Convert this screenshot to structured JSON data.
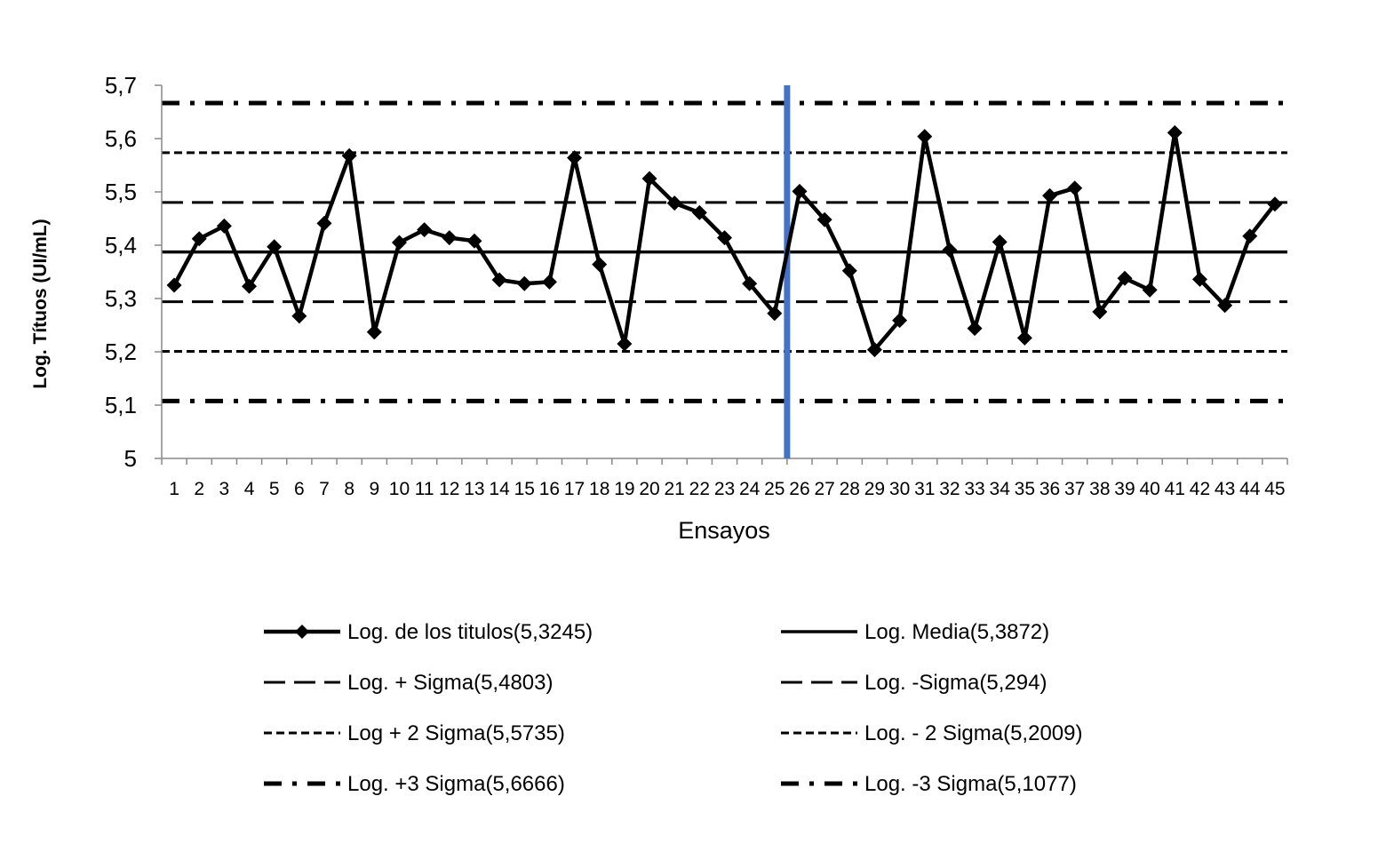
{
  "chart_data": {
    "type": "line",
    "xlabel": "Ensayos",
    "ylabel": "Log. Títuos (UI/mL)",
    "ylim": [
      5,
      5.7
    ],
    "yticks": [
      "5",
      "5,1",
      "5,2",
      "5,3",
      "5,4",
      "5,5",
      "5,6",
      "5,7"
    ],
    "yticks_values": [
      5,
      5.1,
      5.2,
      5.3,
      5.4,
      5.5,
      5.6,
      5.7
    ],
    "grid": false,
    "legend_position": "bottom",
    "categories": [
      "1",
      "2",
      "3",
      "4",
      "5",
      "6",
      "7",
      "8",
      "9",
      "10",
      "11",
      "12",
      "13",
      "14",
      "15",
      "16",
      "17",
      "18",
      "19",
      "20",
      "21",
      "22",
      "23",
      "24",
      "25",
      "26",
      "27",
      "28",
      "29",
      "30",
      "31",
      "32",
      "33",
      "34",
      "35",
      "36",
      "37",
      "38",
      "39",
      "40",
      "41",
      "42",
      "43",
      "44",
      "45"
    ],
    "divider_after_category": "25",
    "divider_color": "#4472c4",
    "series": [
      {
        "name": "Log. de los titulos(5,3245)",
        "style": "solid-diamond",
        "values": [
          5.325,
          5.412,
          5.436,
          5.323,
          5.397,
          5.267,
          5.441,
          5.568,
          5.237,
          5.405,
          5.429,
          5.414,
          5.408,
          5.335,
          5.328,
          5.331,
          5.564,
          5.364,
          5.215,
          5.525,
          5.479,
          5.461,
          5.414,
          5.328,
          5.272,
          5.501,
          5.448,
          5.352,
          5.204,
          5.259,
          5.604,
          5.391,
          5.244,
          5.406,
          5.226,
          5.493,
          5.507,
          5.275,
          5.338,
          5.316,
          5.611,
          5.336,
          5.287,
          5.417,
          5.477
        ]
      },
      {
        "name": "Log. Media(5,3872)",
        "style": "solid",
        "value": 5.3872
      },
      {
        "name": "Log. + Sigma(5,4803)",
        "style": "long-dash",
        "value": 5.4803
      },
      {
        "name": "Log. -Sigma(5,294)",
        "style": "long-dash",
        "value": 5.294
      },
      {
        "name": "Log + 2 Sigma(5,5735)",
        "style": "short-dash",
        "value": 5.5735
      },
      {
        "name": "Log. - 2 Sigma(5,2009)",
        "style": "short-dash",
        "value": 5.2009
      },
      {
        "name": "Log. +3 Sigma(5,6666)",
        "style": "dash-dot",
        "value": 5.6666
      },
      {
        "name": "Log. -3 Sigma(5,1077)",
        "style": "dash-dot",
        "value": 5.1077
      }
    ]
  }
}
